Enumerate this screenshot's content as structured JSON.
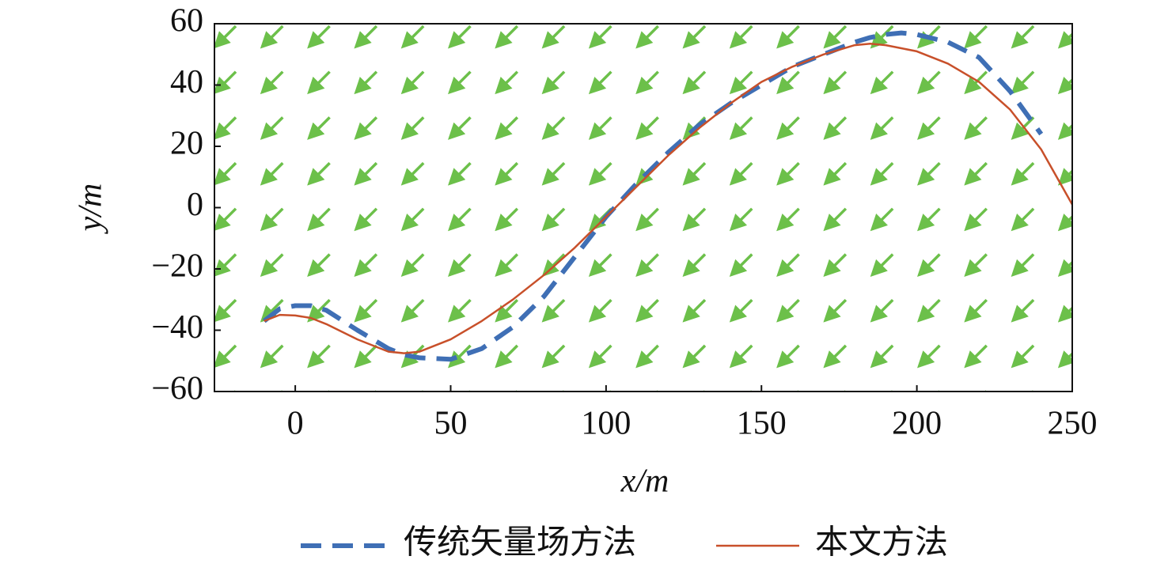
{
  "chart_data": {
    "type": "line",
    "xlabel": "x/m",
    "ylabel": "y/m",
    "xlim": [
      -26,
      250
    ],
    "ylim": [
      -60,
      60
    ],
    "xticks": [
      0,
      50,
      100,
      150,
      200,
      250
    ],
    "yticks": [
      {
        "value": -60,
        "label": "−60"
      },
      {
        "value": -40,
        "label": "−40"
      },
      {
        "value": -20,
        "label": "−20"
      },
      0,
      20,
      40,
      60
    ],
    "x": [
      -10,
      -5,
      0,
      5,
      10,
      20,
      30,
      35,
      40,
      50,
      60,
      70,
      80,
      90,
      100,
      110,
      120,
      130,
      140,
      150,
      160,
      170,
      180,
      185,
      190,
      195,
      200,
      210,
      220,
      230,
      240,
      250
    ],
    "series": [
      {
        "name": "传统矢量场方法",
        "color": "#3f6fb5",
        "dashed": true,
        "values": [
          -37,
          -33,
          -32,
          -32,
          -33.5,
          -40,
          -46,
          -48,
          -49,
          -49.5,
          -46,
          -39,
          -29,
          -16,
          -3,
          8,
          18,
          27,
          34,
          40,
          46,
          50,
          54,
          55.5,
          56.5,
          57,
          56.5,
          54,
          49,
          38,
          24,
          null
        ]
      },
      {
        "name": "本文方法",
        "color": "#c8502a",
        "dashed": false,
        "values": [
          -37,
          -35,
          -35.2,
          -36,
          -38,
          -43,
          -47,
          -47.5,
          -47,
          -43,
          -37,
          -30,
          -22,
          -13,
          -3,
          7,
          17,
          26,
          34,
          41,
          46,
          50,
          53,
          53.5,
          53,
          52,
          51,
          47,
          41,
          32,
          19,
          1
        ]
      }
    ]
  }
}
